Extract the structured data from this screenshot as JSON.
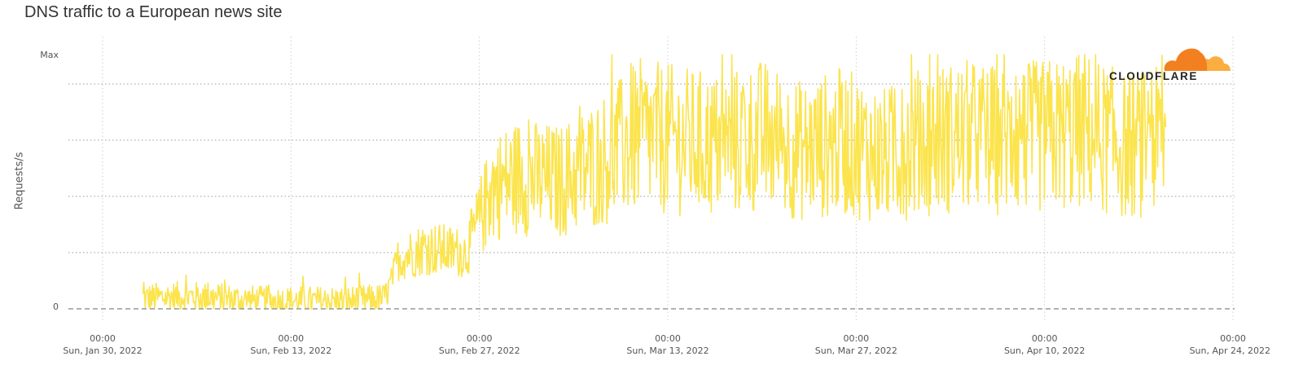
{
  "chart_data": {
    "type": "line",
    "title": "DNS traffic to a European news site",
    "ylabel": "Requests/s",
    "xlabel": "",
    "y_tick_labels": [
      "0",
      "Max"
    ],
    "x_ticks": [
      {
        "time": "00:00",
        "date": "Sun, Jan 30, 2022"
      },
      {
        "time": "00:00",
        "date": "Sun, Feb 13, 2022"
      },
      {
        "time": "00:00",
        "date": "Sun, Feb 27, 2022"
      },
      {
        "time": "00:00",
        "date": "Sun, Mar 13, 2022"
      },
      {
        "time": "00:00",
        "date": "Sun, Mar 27, 2022"
      },
      {
        "time": "00:00",
        "date": "Sun, Apr 10, 2022"
      },
      {
        "time": "00:00",
        "date": "Sun, Apr 24, 2022"
      }
    ],
    "x_range": [
      "2022-01-30",
      "2022-04-24"
    ],
    "y_scale": "relative (0 to Max)",
    "grid": true,
    "series_color": "#fbe44d",
    "baseline_color": "#999999",
    "series": [
      {
        "x": [
          "2022-02-02",
          "2022-02-05",
          "2022-02-08",
          "2022-02-11",
          "2022-02-14",
          "2022-02-17",
          "2022-02-20",
          "2022-02-21",
          "2022-02-23",
          "2022-02-26",
          "2022-02-28",
          "2022-03-02",
          "2022-03-05",
          "2022-03-08",
          "2022-03-11",
          "2022-03-14",
          "2022-03-17",
          "2022-03-20",
          "2022-03-23",
          "2022-03-26",
          "2022-03-29",
          "2022-04-01",
          "2022-04-04",
          "2022-04-07",
          "2022-04-10",
          "2022-04-13",
          "2022-04-16",
          "2022-04-19"
        ],
        "values": [
          0.04,
          0.05,
          0.04,
          0.03,
          0.03,
          0.03,
          0.04,
          0.2,
          0.24,
          0.22,
          0.48,
          0.52,
          0.5,
          0.58,
          0.68,
          0.66,
          0.64,
          0.68,
          0.62,
          0.66,
          0.6,
          0.66,
          0.68,
          0.66,
          0.68,
          0.7,
          0.64,
          0.66
        ]
      }
    ]
  },
  "branding": {
    "logo_text": "CLOUDFLARE",
    "logo_colors": {
      "primary": "#f38020",
      "secondary": "#faae40"
    }
  }
}
